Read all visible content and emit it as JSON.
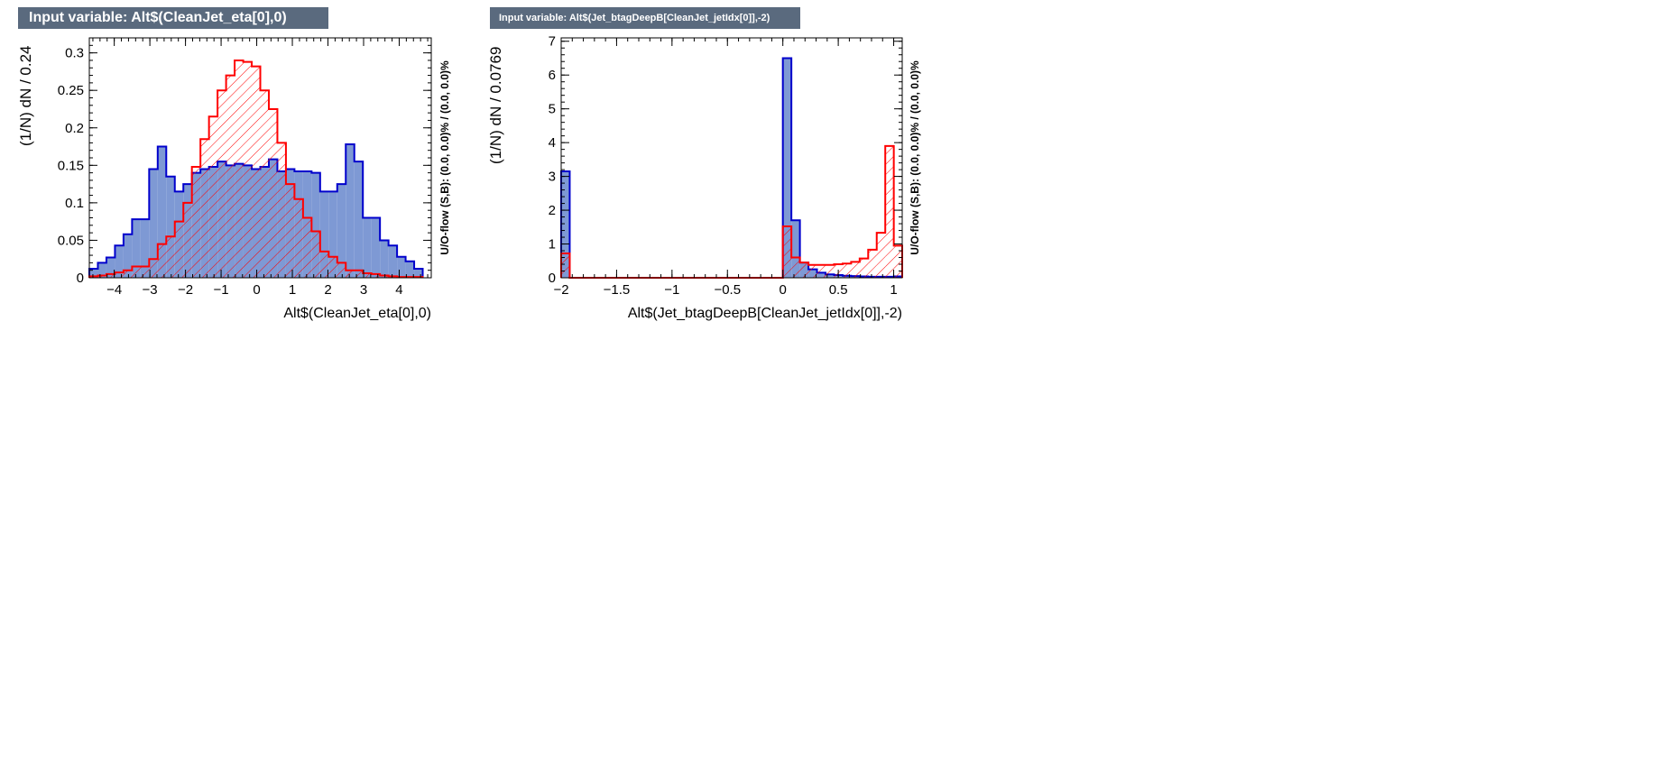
{
  "chart_data": [
    {
      "type": "bar",
      "title": "Input variable: Alt$(CleanJet_eta[0],0)",
      "xlabel": "Alt$(CleanJet_eta[0],0)",
      "ylabel": "(1/N) dN / 0.24",
      "side_label": "U/O-flow (S,B): (0.0, 0.0)% / (0.0, 0.0)%",
      "xlim": [
        -4.7,
        4.9
      ],
      "ylim": [
        0,
        0.32
      ],
      "xticks": [
        -4,
        -3,
        -2,
        -1,
        0,
        1,
        2,
        3,
        4
      ],
      "xtick_labels": [
        "−4",
        "−3",
        "−2",
        "−1",
        "0",
        "1",
        "2",
        "3",
        "4"
      ],
      "yticks": [
        0,
        0.05,
        0.1,
        0.15,
        0.2,
        0.25,
        0.3
      ],
      "ytick_labels": [
        "0",
        "0.05",
        "0.1",
        "0.15",
        "0.2",
        "0.25",
        "0.3"
      ],
      "grid": false,
      "bin_edges": [
        -4.7,
        -4.46,
        -4.22,
        -3.98,
        -3.74,
        -3.5,
        -3.26,
        -3.02,
        -2.78,
        -2.54,
        -2.3,
        -2.06,
        -1.82,
        -1.58,
        -1.34,
        -1.1,
        -0.86,
        -0.62,
        -0.38,
        -0.14,
        0.1,
        0.34,
        0.58,
        0.82,
        1.06,
        1.3,
        1.54,
        1.78,
        2.02,
        2.26,
        2.5,
        2.74,
        2.98,
        3.22,
        3.46,
        3.7,
        3.94,
        4.18,
        4.42,
        4.66
      ],
      "series": [
        {
          "color": "#0000cc",
          "fill": "#7e99d4",
          "style": "solid",
          "values": [
            0.012,
            0.02,
            0.027,
            0.043,
            0.058,
            0.078,
            0.078,
            0.145,
            0.175,
            0.135,
            0.115,
            0.125,
            0.14,
            0.145,
            0.148,
            0.155,
            0.15,
            0.152,
            0.15,
            0.145,
            0.148,
            0.158,
            0.142,
            0.145,
            0.142,
            0.142,
            0.14,
            0.115,
            0.115,
            0.125,
            0.178,
            0.155,
            0.08,
            0.08,
            0.05,
            0.043,
            0.028,
            0.022,
            0.012
          ]
        },
        {
          "color": "#ff0000",
          "fill": "#ff0000",
          "style": "hatched",
          "values": [
            0.002,
            0.003,
            0.005,
            0.007,
            0.01,
            0.015,
            0.015,
            0.025,
            0.045,
            0.055,
            0.075,
            0.1,
            0.148,
            0.185,
            0.215,
            0.25,
            0.27,
            0.29,
            0.288,
            0.282,
            0.25,
            0.225,
            0.18,
            0.125,
            0.105,
            0.08,
            0.062,
            0.035,
            0.028,
            0.02,
            0.01,
            0.01,
            0.006,
            0.005,
            0.003,
            0.002,
            0.001,
            0.001,
            0.001
          ]
        }
      ]
    },
    {
      "type": "bar",
      "title": "Input variable: Alt$(Jet_btagDeepB[CleanJet_jetIdx[0]],-2)",
      "xlabel": "Alt$(Jet_btagDeepB[CleanJet_jetIdx[0]],-2)",
      "ylabel": "(1/N) dN / 0.0769",
      "side_label": "U/O-flow (S,B): (0.0, 0.0)% / (0.0, 0.0)%",
      "xlim": [
        -2.0,
        1.077
      ],
      "ylim": [
        0,
        7.1
      ],
      "xticks": [
        -2,
        -1.5,
        -1,
        -0.5,
        0,
        0.5,
        1
      ],
      "xtick_labels": [
        "−2",
        "−1.5",
        "−1",
        "−0.5",
        "0",
        "0.5",
        "1"
      ],
      "yticks": [
        0,
        1,
        2,
        3,
        4,
        5,
        6,
        7
      ],
      "ytick_labels": [
        "0",
        "1",
        "2",
        "3",
        "4",
        "5",
        "6",
        "7"
      ],
      "grid": false,
      "bin_edges": [
        -2.0,
        -1.923,
        -1.846,
        -1.769,
        -1.692,
        -1.615,
        -1.538,
        -1.461,
        -1.384,
        -1.307,
        -1.23,
        -1.153,
        -1.076,
        -0.999,
        -0.922,
        -0.845,
        -0.768,
        -0.691,
        -0.614,
        -0.537,
        -0.46,
        -0.383,
        -0.306,
        -0.229,
        -0.152,
        -0.075,
        0.0,
        0.077,
        0.154,
        0.231,
        0.308,
        0.385,
        0.462,
        0.539,
        0.616,
        0.693,
        0.77,
        0.847,
        0.924,
        1.001,
        1.077
      ],
      "series": [
        {
          "color": "#0000cc",
          "fill": "#7e99d4",
          "style": "solid",
          "values": [
            3.15,
            0,
            0,
            0,
            0,
            0,
            0,
            0,
            0,
            0,
            0,
            0,
            0,
            0,
            0,
            0,
            0,
            0,
            0,
            0,
            0,
            0,
            0,
            0,
            0,
            0,
            6.5,
            1.7,
            0.45,
            0.25,
            0.15,
            0.1,
            0.08,
            0.06,
            0.05,
            0.04,
            0.03,
            0.03,
            0.03,
            0.04
          ],
          "overflow_note": "-"
        },
        {
          "color": "#ff0000",
          "fill": "#ff0000",
          "style": "hatched",
          "values": [
            0.72,
            0,
            0,
            0,
            0,
            0,
            0,
            0,
            0,
            0,
            0,
            0,
            0,
            0,
            0,
            0,
            0,
            0,
            0,
            0,
            0,
            0,
            0,
            0,
            0,
            0,
            1.52,
            0.6,
            0.45,
            0.38,
            0.38,
            0.38,
            0.4,
            0.42,
            0.47,
            0.57,
            0.83,
            1.33,
            3.9,
            0.95
          ]
        }
      ]
    }
  ]
}
